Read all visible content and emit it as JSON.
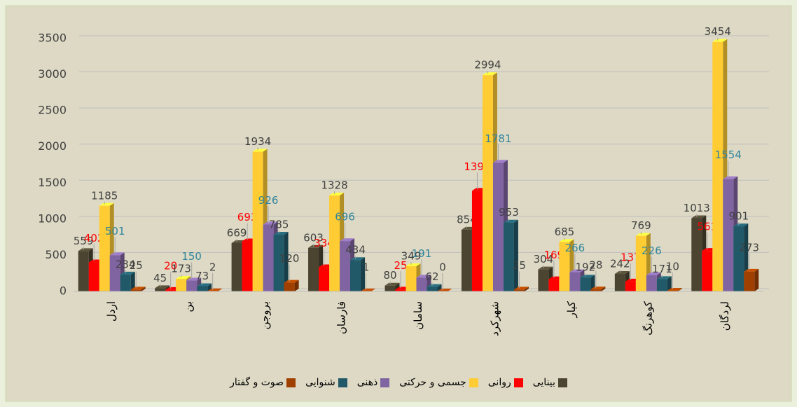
{
  "chart_data": {
    "type": "bar3d",
    "categories": [
      "اردل",
      "بن",
      "بروجن",
      "فارسان",
      "سامان",
      "شهرکرد",
      "کیار",
      "کوهرنگ",
      "لردگان"
    ],
    "series": [
      {
        "name": "بینایی",
        "color": "#4b4431",
        "label_color": "#404040",
        "values": [
          559,
          45,
          669,
          603,
          80,
          854,
          304,
          242,
          1013
        ]
      },
      {
        "name": "روانی",
        "color": "#ff0000",
        "label_color": "#ff0000",
        "values": [
          402,
          20,
          693,
          334,
          25,
          1393,
          169,
          137,
          561
        ]
      },
      {
        "name": "جسمی و حرکتی",
        "color": "#ffcc33",
        "label_color": "#404040",
        "values": [
          1185,
          173,
          1934,
          1328,
          349,
          2994,
          685,
          769,
          3454
        ]
      },
      {
        "name": "ذهنی",
        "color": "#8064a2",
        "label_color": "#31859c",
        "values": [
          501,
          150,
          926,
          696,
          191,
          1781,
          266,
          226,
          1554
        ]
      },
      {
        "name": "شنوایی",
        "color": "#215968",
        "label_color": "#404040",
        "values": [
          234,
          73,
          785,
          434,
          62,
          953,
          192,
          171,
          901
        ]
      },
      {
        "name": "صوت و گفتار",
        "color": "#a04000",
        "label_color": "#404040",
        "values": [
          25,
          2,
          120,
          1,
          0,
          25,
          28,
          10,
          273
        ]
      }
    ],
    "ylim": [
      0,
      3500
    ],
    "yticks": [
      0,
      500,
      1000,
      1500,
      2000,
      2500,
      3000,
      3500
    ],
    "grid": true
  }
}
